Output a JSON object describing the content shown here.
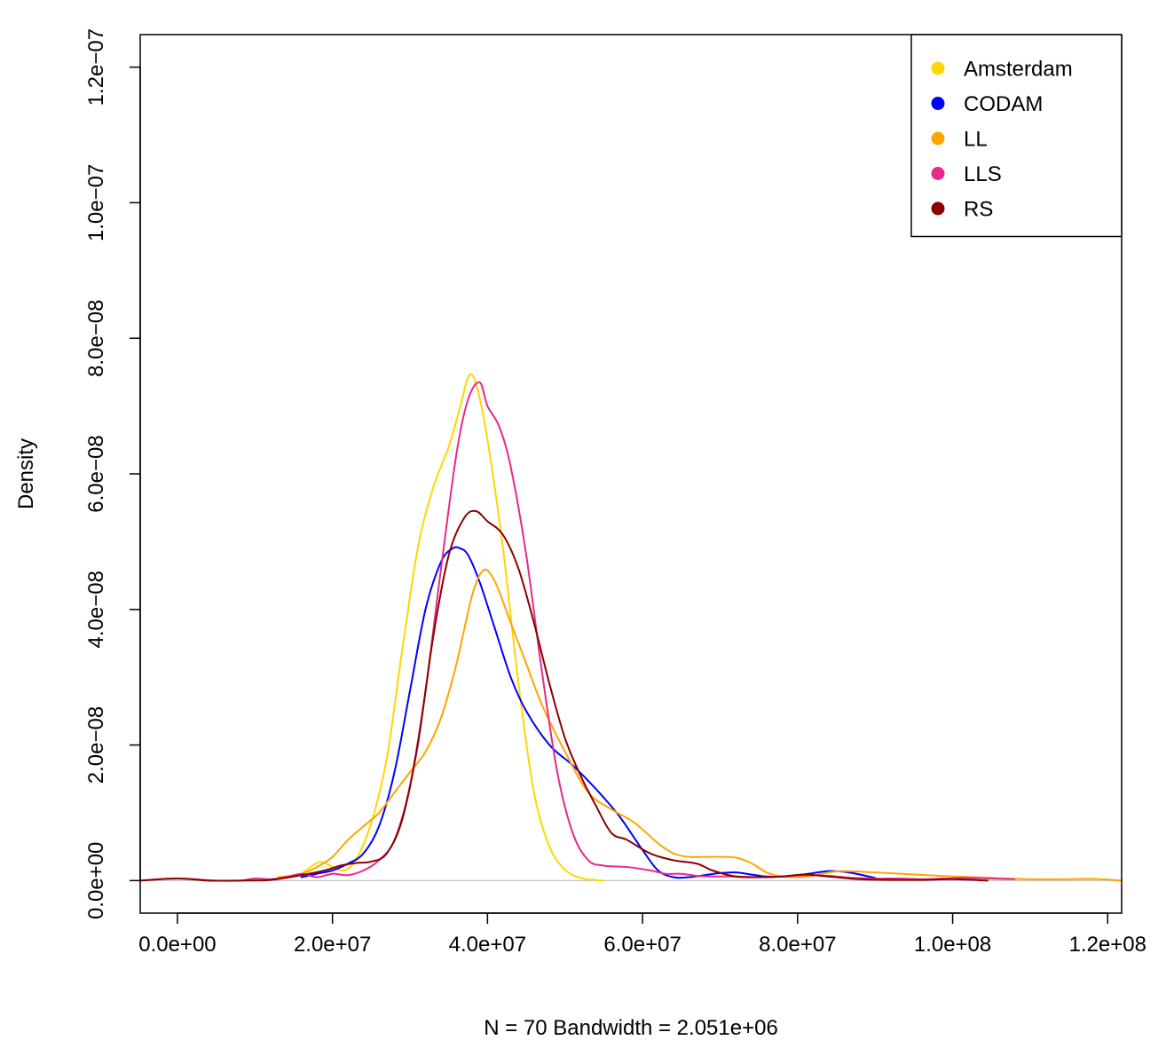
{
  "chart_data": {
    "type": "line",
    "title": "",
    "xlabel": "N = 70   Bandwidth = 2.051e+06",
    "ylabel": "Density",
    "xlim": [
      -4800000,
      121800000
    ],
    "ylim": [
      -4.8e-09,
      1.248e-07
    ],
    "x_ticks": [
      {
        "value": 0,
        "label": "0.0e+00"
      },
      {
        "value": 20000000,
        "label": "2.0e+07"
      },
      {
        "value": 40000000,
        "label": "4.0e+07"
      },
      {
        "value": 60000000,
        "label": "6.0e+07"
      },
      {
        "value": 80000000,
        "label": "8.0e+07"
      },
      {
        "value": 100000000,
        "label": "1.0e+08"
      },
      {
        "value": 120000000,
        "label": "1.2e+08"
      }
    ],
    "y_ticks": [
      {
        "value": 0,
        "label": "0.0e+00"
      },
      {
        "value": 2e-08,
        "label": "2.0e−08"
      },
      {
        "value": 4e-08,
        "label": "4.0e−08"
      },
      {
        "value": 6e-08,
        "label": "6.0e−08"
      },
      {
        "value": 8e-08,
        "label": "8.0e−08"
      },
      {
        "value": 1e-07,
        "label": "1.0e−07"
      },
      {
        "value": 1.2e-07,
        "label": "1.2e−07"
      }
    ],
    "baseline": {
      "y": 0,
      "color": "#bebebe"
    },
    "legend": {
      "position": "top-right"
    },
    "series": [
      {
        "name": "Amsterdam",
        "color": "#FFD700",
        "x": [
          16000000,
          18000000,
          19000000,
          20000000,
          21500000,
          23000000,
          25000000,
          27000000,
          29000000,
          31000000,
          33000000,
          35000000,
          36500000,
          37600000,
          38600000,
          40000000,
          42000000,
          44000000,
          46000000,
          48000000,
          50000000,
          52000000,
          54000000,
          55000000
        ],
        "y": [
          1e-09,
          2.6e-09,
          2.6e-09,
          2e-09,
          1.5e-09,
          3e-09,
          8.5e-09,
          1.8e-08,
          3.4e-08,
          4.9e-08,
          5.8e-08,
          6.4e-08,
          7e-08,
          7.45e-08,
          7.3e-08,
          6.5e-08,
          4.9e-08,
          2.9e-08,
          1.3e-08,
          5e-09,
          1.6e-09,
          4e-10,
          1e-10,
          0
        ]
      },
      {
        "name": "CODAM",
        "color": "#0000FF",
        "x": [
          16000000,
          18000000,
          20000000,
          22000000,
          24000000,
          26000000,
          28000000,
          30000000,
          32000000,
          34000000,
          35500000,
          36500000,
          37500000,
          39000000,
          41000000,
          43000000,
          45000000,
          48000000,
          51000000,
          54000000,
          57000000,
          60000000,
          62000000,
          64000000,
          66000000,
          68000000,
          70000000,
          72000000,
          74000000,
          76000000,
          78000000,
          80000000,
          82000000,
          84000000,
          86000000,
          88000000,
          90000000
        ],
        "y": [
          5e-10,
          1e-09,
          1.5e-09,
          2.5e-09,
          4e-09,
          8e-09,
          1.6e-08,
          2.8e-08,
          4e-08,
          4.7e-08,
          4.9e-08,
          4.9e-08,
          4.8e-08,
          4.4e-08,
          3.7e-08,
          3e-08,
          2.5e-08,
          2e-08,
          1.7e-08,
          1.35e-08,
          9.5e-09,
          4.5e-09,
          1.5e-09,
          5e-10,
          5e-10,
          8e-10,
          1.1e-09,
          1.2e-09,
          9e-10,
          6e-10,
          6e-10,
          8e-10,
          1.1e-09,
          1.4e-09,
          1.3e-09,
          9e-10,
          4e-10
        ]
      },
      {
        "name": "LL",
        "color": "#FFA500",
        "x": [
          13000000,
          16000000,
          18000000,
          20000000,
          22000000,
          24000000,
          26000000,
          28000000,
          30000000,
          32000000,
          34000000,
          36000000,
          38000000,
          39500000,
          41000000,
          43000000,
          45000000,
          47000000,
          50000000,
          53000000,
          56000000,
          59000000,
          62000000,
          64000000,
          66000000,
          68000000,
          70000000,
          72000000,
          74000000,
          76000000,
          78000000,
          80000000,
          82000000,
          84000000,
          86000000,
          90000000,
          95000000,
          100000000,
          105000000,
          110000000,
          115000000,
          118000000,
          121800000
        ],
        "y": [
          5e-10,
          1e-09,
          2e-09,
          3.5e-09,
          6e-09,
          8e-09,
          1e-08,
          1.3e-08,
          1.6e-08,
          1.9e-08,
          2.4e-08,
          3.2e-08,
          4.2e-08,
          4.58e-08,
          4.4e-08,
          3.8e-08,
          3.2e-08,
          2.6e-08,
          1.9e-08,
          1.3e-08,
          1.05e-08,
          8.5e-09,
          5.5e-09,
          4e-09,
          3.5e-09,
          3.5e-09,
          3.5e-09,
          3.4e-09,
          2.6e-09,
          1.2e-09,
          6e-10,
          5e-10,
          7e-10,
          1.2e-09,
          1.4e-09,
          1.2e-09,
          9e-10,
          6e-10,
          4e-10,
          2e-10,
          2e-10,
          2.5e-10,
          0
        ]
      },
      {
        "name": "LLS",
        "color": "#E7298A",
        "x": [
          -4800000,
          0,
          5000000,
          8000000,
          10000000,
          12000000,
          14000000,
          16000000,
          18000000,
          20000000,
          22000000,
          24000000,
          26000000,
          28000000,
          30000000,
          32000000,
          34000000,
          36000000,
          37500000,
          39000000,
          40000000,
          41500000,
          43000000,
          45000000,
          47000000,
          49000000,
          51000000,
          53000000,
          55000000,
          58000000,
          61000000,
          63000000,
          65000000,
          67000000,
          69000000,
          72000000,
          75000000,
          78000000,
          81000000,
          84000000,
          87000000,
          90000000,
          93000000,
          96000000,
          99000000,
          102000000,
          105000000,
          108000000
        ],
        "y": [
          0,
          3e-10,
          0,
          0,
          3e-10,
          2e-10,
          5e-10,
          1e-09,
          5e-10,
          1e-09,
          8e-10,
          1.5e-09,
          3e-09,
          6e-09,
          1.4e-08,
          2.8e-08,
          4.6e-08,
          6.3e-08,
          7.1e-08,
          7.35e-08,
          7e-08,
          6.7e-08,
          6.1e-08,
          4.8e-08,
          3.1e-08,
          1.6e-08,
          7e-09,
          3e-09,
          2.2e-09,
          2e-09,
          1.5e-09,
          1e-09,
          1e-09,
          7e-10,
          6e-10,
          6e-10,
          5e-10,
          6e-10,
          8e-10,
          7e-10,
          4e-10,
          3e-10,
          3e-10,
          2e-10,
          3e-10,
          4e-10,
          3e-10,
          2e-10
        ]
      },
      {
        "name": "RS",
        "color": "#8B0000",
        "x": [
          -4800000,
          0,
          4000000,
          8000000,
          12000000,
          16000000,
          19000000,
          21000000,
          23000000,
          25000000,
          27000000,
          29000000,
          31000000,
          33000000,
          35000000,
          37000000,
          38500000,
          40000000,
          42000000,
          44000000,
          46000000,
          48000000,
          50000000,
          52000000,
          54000000,
          56000000,
          58000000,
          61000000,
          64000000,
          67000000,
          69000000,
          72000000,
          75000000,
          78000000,
          81000000,
          84000000,
          88000000,
          92000000,
          96000000,
          100000000,
          104500000
        ],
        "y": [
          0,
          3e-10,
          0,
          0,
          1e-10,
          8e-10,
          1.5e-09,
          2.2e-09,
          2.6e-09,
          2.8e-09,
          4e-09,
          9e-09,
          2e-08,
          3.6e-08,
          4.8e-08,
          5.35e-08,
          5.45e-08,
          5.3e-08,
          5.1e-08,
          4.6e-08,
          3.8e-08,
          2.9e-08,
          2.1e-08,
          1.55e-08,
          1.1e-08,
          7e-09,
          6e-09,
          4e-09,
          3e-09,
          2.5e-09,
          1.5e-09,
          6e-10,
          5e-10,
          6e-10,
          9e-10,
          6e-10,
          2e-10,
          1e-10,
          1e-10,
          2e-10,
          0
        ]
      }
    ]
  }
}
